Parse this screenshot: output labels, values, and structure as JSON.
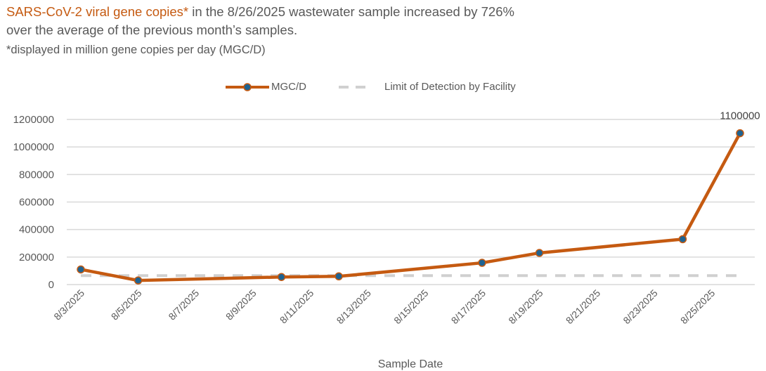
{
  "headline": {
    "highlight": "SARS-CoV-2 viral gene copies*",
    "rest_line1": " in the 8/26/2025 wastewater sample increased by 726%",
    "line2": "over the average of the previous month’s samples."
  },
  "footnote": "*displayed in million gene copies per day (MGC/D)",
  "colors": {
    "series_line": "#c55a11",
    "marker_fill": "#1f6391",
    "lod_line": "#d0d0d0",
    "grid": "#d9d9d9",
    "text": "#595959"
  },
  "chart_data": {
    "type": "line",
    "title": "",
    "xlabel": "Sample Date",
    "ylabel": "",
    "ylim": [
      0,
      1200000
    ],
    "y_ticks": [
      0,
      200000,
      400000,
      600000,
      800000,
      1000000,
      1200000
    ],
    "x_range": [
      "8/3/2025",
      "8/26/2025"
    ],
    "x_tick_labels": [
      "8/3/2025",
      "8/5/2025",
      "8/7/2025",
      "8/9/2025",
      "8/11/2025",
      "8/13/2025",
      "8/15/2025",
      "8/17/2025",
      "8/19/2025",
      "8/21/2025",
      "8/23/2025",
      "8/25/2025"
    ],
    "grid": true,
    "legend_position": "top",
    "series": [
      {
        "name": "MGC/D",
        "style": "solid-with-markers",
        "points": [
          {
            "date": "8/3/2025",
            "value": 110000
          },
          {
            "date": "8/5/2025",
            "value": 30000
          },
          {
            "date": "8/10/2025",
            "value": 55000
          },
          {
            "date": "8/12/2025",
            "value": 60000
          },
          {
            "date": "8/17/2025",
            "value": 158000
          },
          {
            "date": "8/19/2025",
            "value": 230000
          },
          {
            "date": "8/24/2025",
            "value": 330000
          },
          {
            "date": "8/26/2025",
            "value": 1100000
          }
        ]
      },
      {
        "name": "Limit of Detection by Facility",
        "style": "dashed",
        "points": [
          {
            "date": "8/3/2025",
            "value": 65000
          },
          {
            "date": "8/26/2025",
            "value": 65000
          }
        ]
      }
    ],
    "annotations": [
      {
        "date": "8/26/2025",
        "value": 1100000,
        "text": "1100000"
      }
    ]
  }
}
